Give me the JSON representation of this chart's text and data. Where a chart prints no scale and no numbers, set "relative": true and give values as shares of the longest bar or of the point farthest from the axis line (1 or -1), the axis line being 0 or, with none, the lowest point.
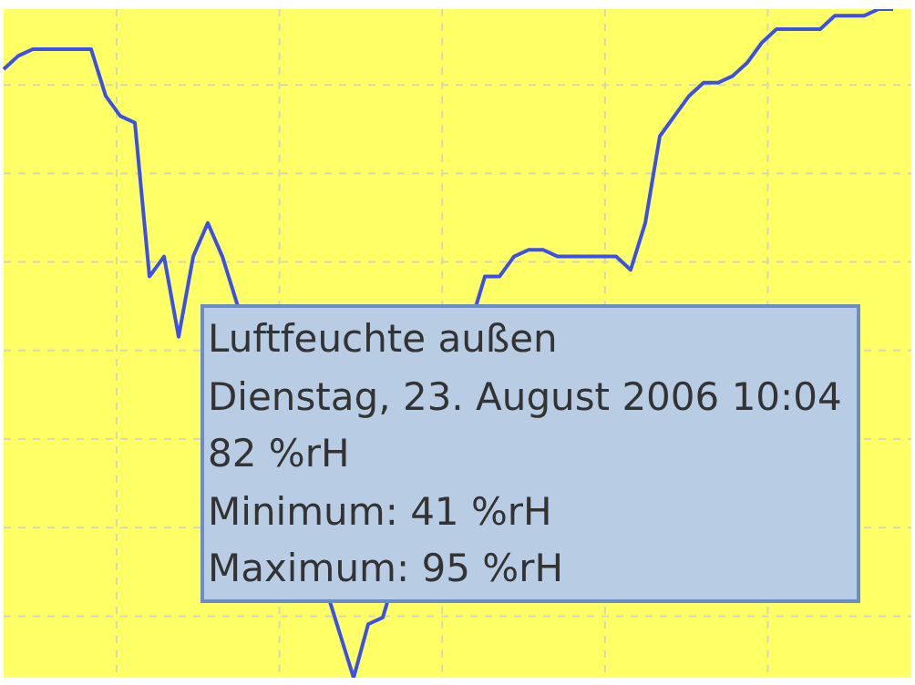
{
  "chart_data": {
    "type": "line",
    "relative": true,
    "grid": true,
    "marker": "none",
    "categories": [
      null,
      null,
      null,
      null,
      null,
      null,
      null,
      null,
      null,
      null,
      null,
      null,
      null,
      null,
      null,
      null,
      null,
      null,
      null,
      null,
      null,
      null,
      null,
      null,
      null,
      null,
      null,
      null,
      null,
      null,
      null,
      null,
      null,
      null,
      null,
      null,
      null,
      null,
      null,
      null,
      null,
      null,
      null,
      null,
      null,
      null,
      null,
      null,
      null,
      null,
      null,
      null,
      null,
      null,
      null,
      null,
      null,
      null,
      null,
      null,
      null,
      null
    ],
    "series": [
      {
        "color": "#3c50e6",
        "values": [
          0.91,
          0.93,
          0.94,
          0.94,
          0.94,
          0.94,
          0.94,
          0.87,
          0.84,
          0.83,
          0.6,
          0.63,
          0.51,
          0.63,
          0.68,
          0.63,
          null,
          null,
          null,
          null,
          null,
          null,
          null,
          null,
          0,
          0.08,
          0.09,
          null,
          null,
          null,
          null,
          null,
          null,
          0.6,
          0.6,
          0.63,
          0.64,
          0.64,
          0.63,
          0.63,
          0.63,
          0.63,
          0.63,
          0.61,
          0.68,
          0.81,
          0.84,
          0.87,
          0.89,
          0.89,
          0.9,
          0.92,
          0.95,
          0.97,
          0.97,
          0.97,
          0.97,
          0.99,
          0.99,
          0.99,
          1,
          1
        ]
      }
    ],
    "annotations": [
      "Luftfeuchte außen",
      "Dienstag, 23. August 2006 10:04",
      "82 %rH",
      "Minimum: 41 %rH",
      "Maximum: 95 %rH"
    ]
  }
}
